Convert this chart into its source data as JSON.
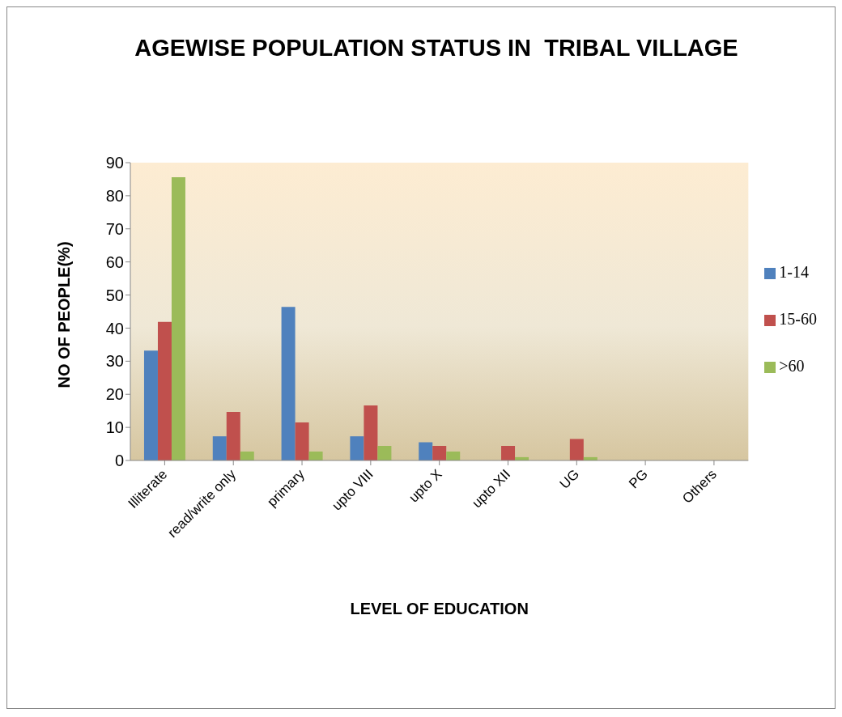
{
  "chart_data": {
    "type": "bar",
    "title": "AGEWISE POPULATION STATUS IN  TRIBAL VILLAGE",
    "xlabel": "LEVEL OF EDUCATION",
    "ylabel": "NO OF PEOPLE(%)",
    "categories": [
      "Illiterate",
      "read/write only",
      "primary",
      "upto VIII",
      "upto X",
      "upto XII",
      "UG",
      "PG",
      "Others"
    ],
    "series": [
      {
        "name": "1-14",
        "color": "#4f81bd",
        "values": [
          33.2,
          7.3,
          46.4,
          7.3,
          5.5,
          0,
          0,
          0,
          0
        ]
      },
      {
        "name": "15-60",
        "color": "#c0504d",
        "values": [
          41.9,
          14.7,
          11.5,
          16.6,
          4.4,
          4.4,
          6.5,
          0,
          0
        ]
      },
      {
        "name": ">60",
        "color": "#9bbb59",
        "values": [
          85.6,
          2.7,
          2.7,
          4.4,
          2.7,
          1.0,
          1.0,
          0,
          0
        ]
      }
    ],
    "ylim": [
      0,
      90
    ],
    "yticks": [
      0,
      10,
      20,
      30,
      40,
      50,
      60,
      70,
      80,
      90
    ],
    "grid": false,
    "legend": "right"
  }
}
